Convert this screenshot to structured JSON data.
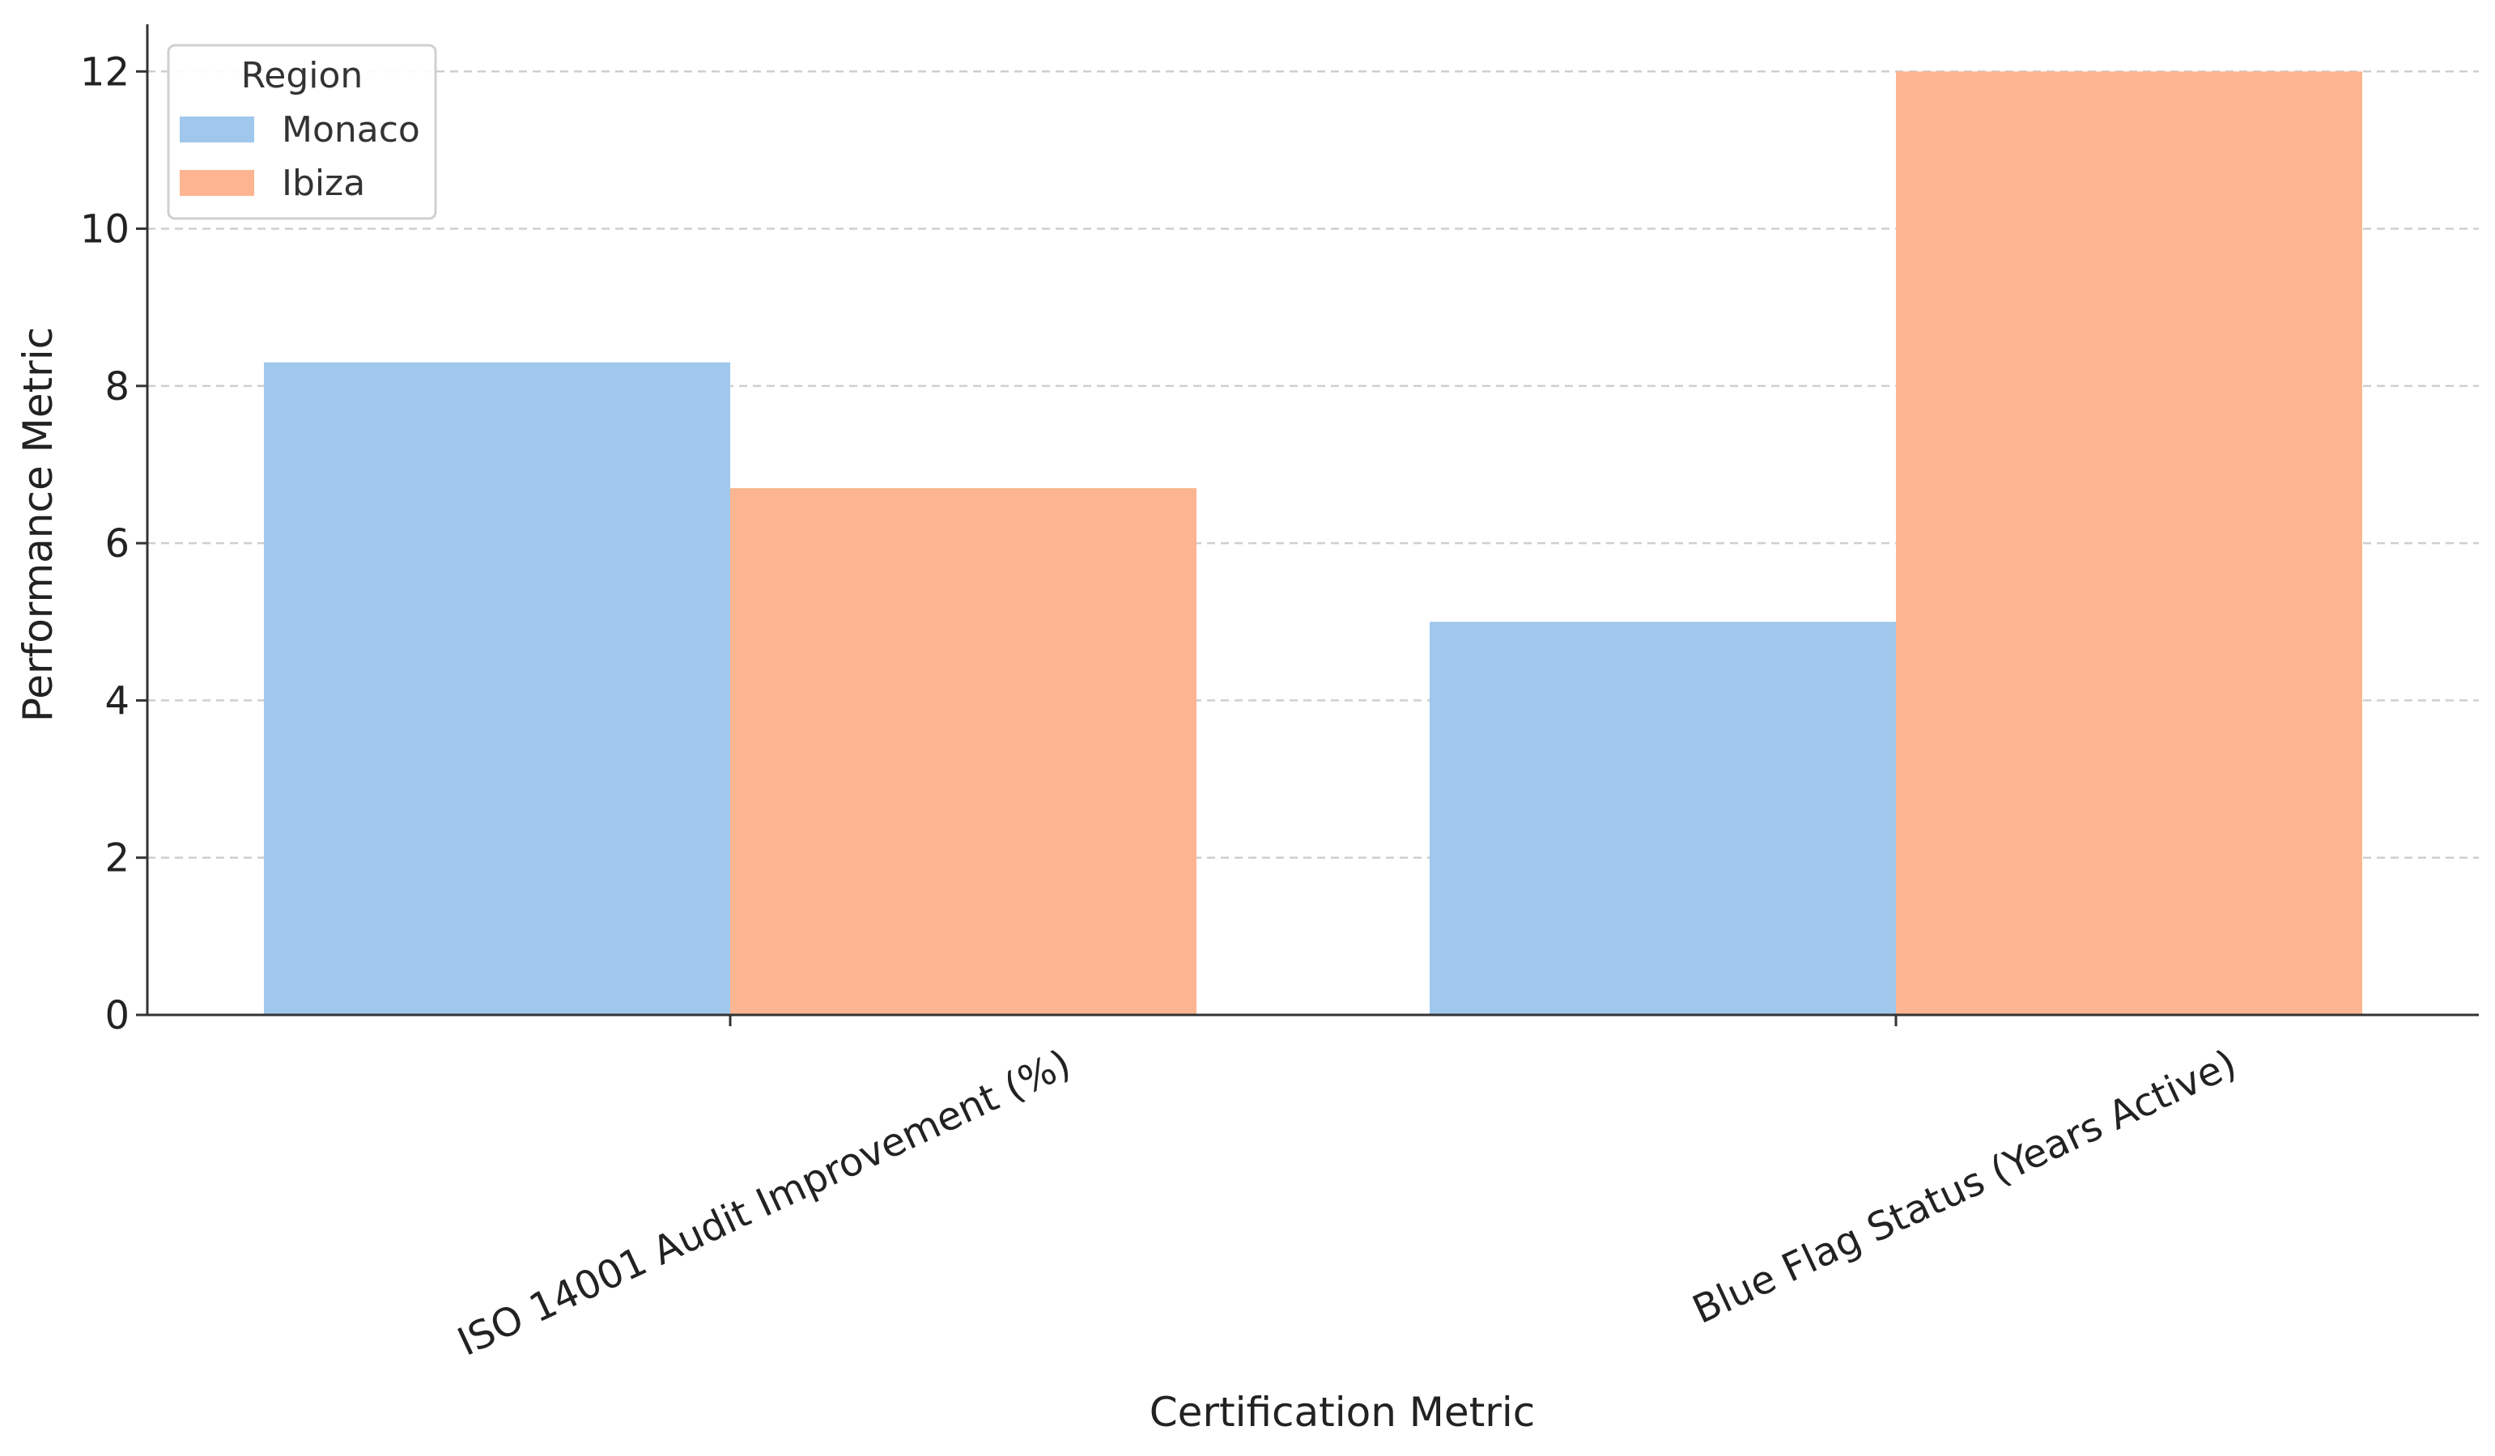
{
  "chart_data": {
    "type": "bar",
    "title": "",
    "xlabel": "Certification Metric",
    "ylabel": "Performance Metric",
    "categories": [
      "ISO 14001 Audit Improvement (%)",
      "Blue Flag Status (Years Active)"
    ],
    "series": [
      {
        "name": "Monaco",
        "values": [
          8.3,
          5
        ],
        "color": "#9fc8ec"
      },
      {
        "name": "Ibiza",
        "values": [
          6.7,
          12
        ],
        "color": "#fcb590"
      }
    ],
    "ylim": [
      0,
      12.6
    ],
    "yticks": [
      0,
      2,
      4,
      6,
      8,
      10,
      12
    ],
    "grid": true,
    "legend": {
      "title": "Region",
      "placement": "top-left"
    }
  }
}
